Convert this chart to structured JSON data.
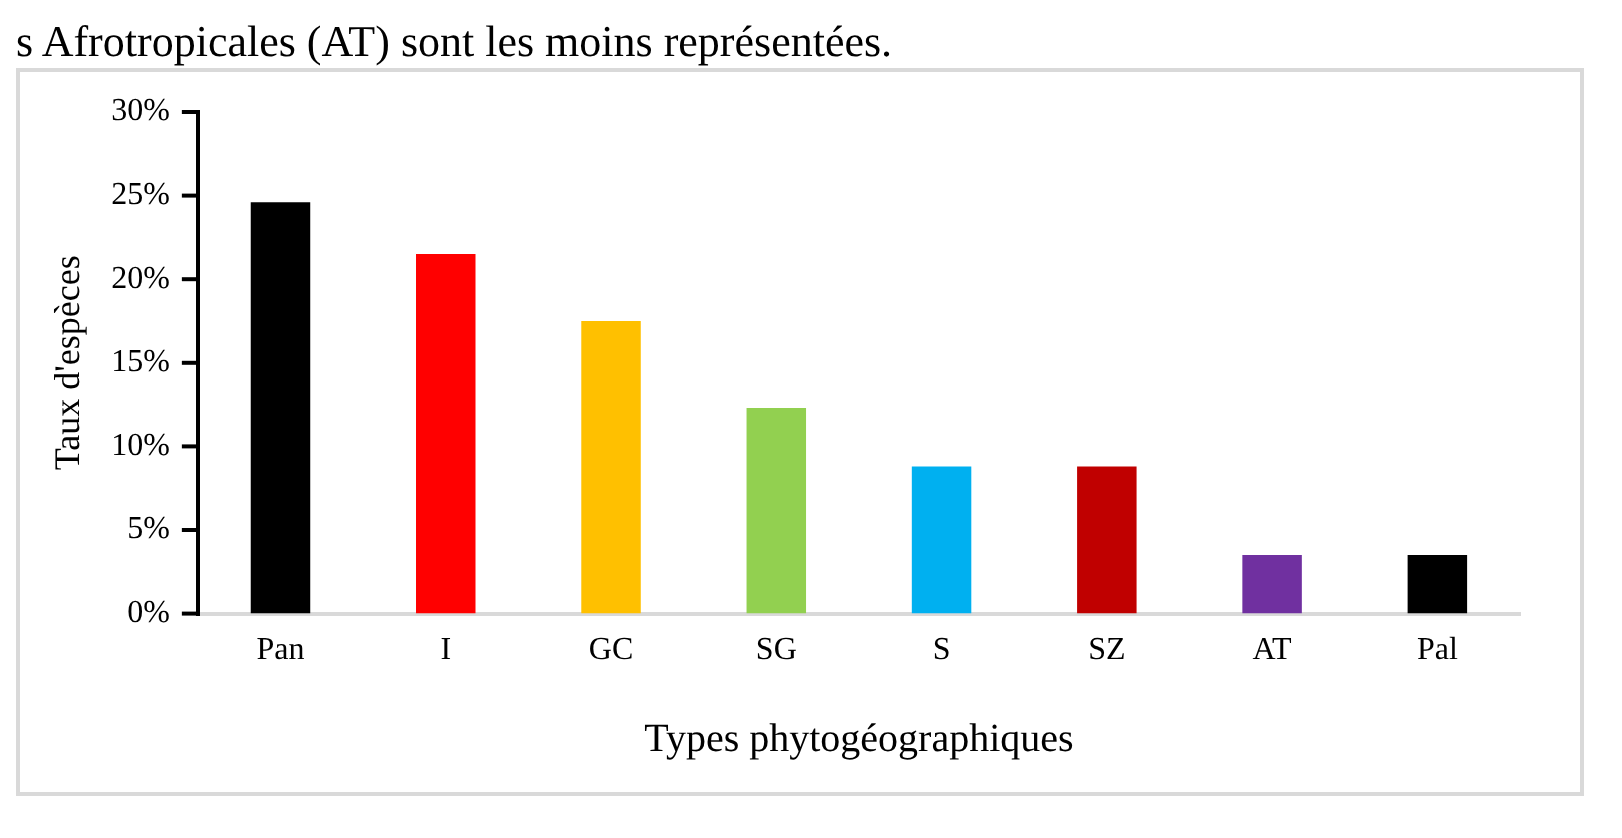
{
  "chart_data": {
    "type": "bar",
    "ylabel": "Taux d'espèces",
    "xlabel": "Types phytogéographiques",
    "annotations": [
      "s Afrotropicales (AT) sont les moins représentées."
    ],
    "categories": [
      "Pan",
      "I",
      "GC",
      "SG",
      "S",
      "SZ",
      "AT",
      "Pal"
    ],
    "values": [
      24.6,
      21.5,
      17.5,
      12.3,
      8.8,
      8.8,
      3.5,
      3.5
    ],
    "colors": [
      "#000000",
      "#ff0000",
      "#ffc000",
      "#92d050",
      "#00b0f0",
      "#c00000",
      "#7030a0",
      "#000000"
    ],
    "ylim": [
      0,
      30
    ],
    "yticks": [
      {
        "value": 0,
        "label": "0%"
      },
      {
        "value": 5,
        "label": "5%"
      },
      {
        "value": 10,
        "label": "10%"
      },
      {
        "value": 15,
        "label": "15%"
      },
      {
        "value": 20,
        "label": "20%"
      },
      {
        "value": 25,
        "label": "25%"
      },
      {
        "value": 30,
        "label": "30%"
      }
    ],
    "grid": false,
    "legend": false
  }
}
